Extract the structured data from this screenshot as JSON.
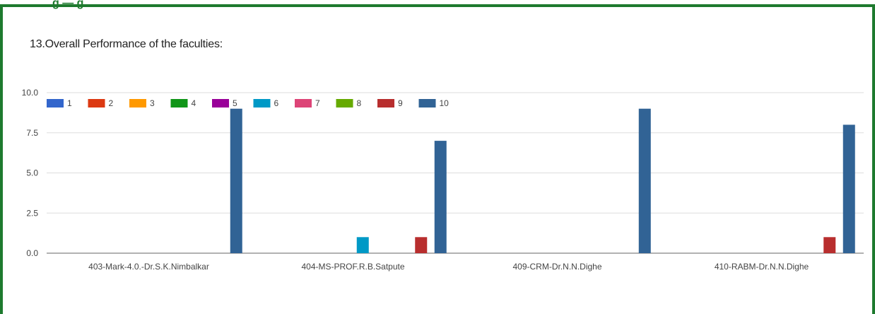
{
  "header": {
    "partial_heading": "g — g"
  },
  "question": {
    "title": "13.Overall Performance of the faculties:"
  },
  "colors": {
    "frame": "#1e7a2e",
    "grid": "#dddddd",
    "axis": "#666666"
  },
  "chart_data": {
    "type": "bar",
    "categories": [
      "403-Mark-4.0.-Dr.S.K.Nimbalkar",
      "404-MS-PROF.R.B.Satpute",
      "409-CRM-Dr.N.N.Dighe",
      "410-RABM-Dr.N.N.Dighe"
    ],
    "series": [
      {
        "name": "1",
        "color": "#3366cc",
        "values": [
          0,
          0,
          0,
          0
        ]
      },
      {
        "name": "2",
        "color": "#dc3912",
        "values": [
          0,
          0,
          0,
          0
        ]
      },
      {
        "name": "3",
        "color": "#ff9900",
        "values": [
          0,
          0,
          0,
          0
        ]
      },
      {
        "name": "4",
        "color": "#109618",
        "values": [
          0,
          0,
          0,
          0
        ]
      },
      {
        "name": "5",
        "color": "#990099",
        "values": [
          0,
          0,
          0,
          0
        ]
      },
      {
        "name": "6",
        "color": "#0099c6",
        "values": [
          0,
          1,
          0,
          0
        ]
      },
      {
        "name": "7",
        "color": "#dd4477",
        "values": [
          0,
          0,
          0,
          0
        ]
      },
      {
        "name": "8",
        "color": "#66aa00",
        "values": [
          0,
          0,
          0,
          0
        ]
      },
      {
        "name": "9",
        "color": "#b82e2e",
        "values": [
          0,
          1,
          0,
          1
        ]
      },
      {
        "name": "10",
        "color": "#316395",
        "values": [
          9,
          7,
          9,
          8
        ]
      }
    ],
    "yticks": [
      "0.0",
      "2.5",
      "5.0",
      "7.5",
      "10.0"
    ],
    "ylim": [
      0,
      10
    ],
    "grid": true,
    "legend_position": "top-left"
  }
}
